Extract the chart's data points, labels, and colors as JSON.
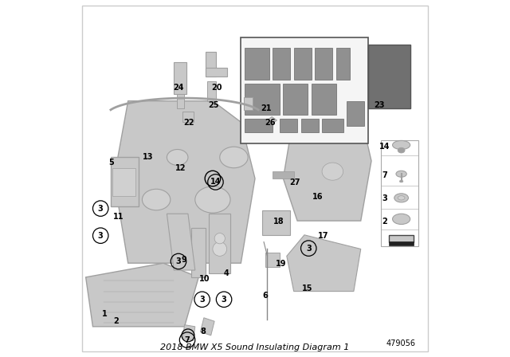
{
  "title": "2018 BMW X5 Sound Insulating Diagram 1",
  "diagram_number": "479056",
  "bg_color": "#ffffff",
  "border_color": "#000000",
  "figsize": [
    6.4,
    4.48
  ],
  "dpi": 100,
  "part_color": "#c8c8c8",
  "accent_color": "#808080",
  "title_fontsize": 9,
  "label_fontsize": 8
}
